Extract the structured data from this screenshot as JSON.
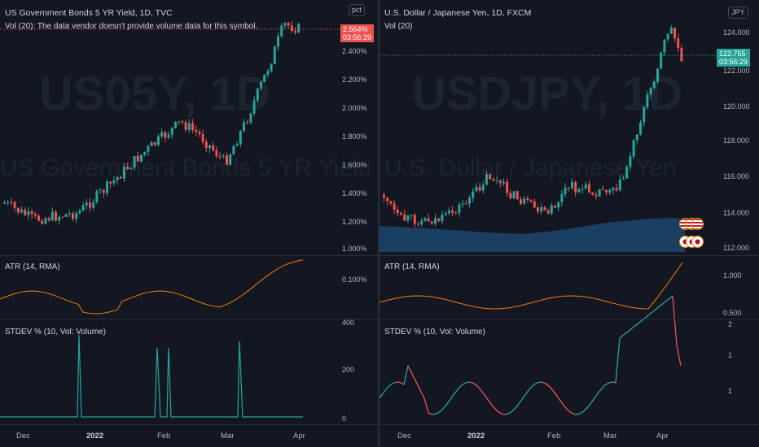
{
  "left": {
    "title": "US Government Bonds 5 YR Yield, 1D, TVC",
    "vol_note": "Vol (20): The data vendor doesn't provide volume data for this symbol.",
    "watermark_big": "US05Y, 1D",
    "watermark_small": "US Government Bonds 5 YR Yield",
    "unit": "pct",
    "price_ticks": [
      "2.400%",
      "2.200%",
      "2.000%",
      "1.800%",
      "1.600%",
      "1.400%",
      "1.200%",
      "1.000%"
    ],
    "last_price": "2.564%",
    "countdown": "03:56:29",
    "atr_label": "ATR (14, RMA)",
    "atr_tick": "0.100%",
    "stdev_label": "STDEV % (10, Vol: Volume)",
    "stdev_ticks": [
      "400",
      "200",
      "0"
    ],
    "time_labels": [
      "Dec",
      "2022",
      "Feb",
      "Mar",
      "Apr"
    ]
  },
  "right": {
    "title": "U.S. Dollar / Japanese Yen, 1D, FXCM",
    "vol_label": "Vol (20)",
    "watermark_big": "USDJPY, 1D",
    "watermark_small": "U.S. Dollar / Japanese Yen",
    "unit": "JPY",
    "price_ticks": [
      "124.000",
      "122.000",
      "120.000",
      "118.000",
      "116.000",
      "114.000",
      "112.000"
    ],
    "last_price": "122.755",
    "countdown": "03:56:29",
    "atr_label": "ATR (14, RMA)",
    "atr_ticks": [
      "1.000",
      "0.500"
    ],
    "stdev_label": "STDEV % (10, Vol: Volume)",
    "stdev_ticks": [
      "2",
      "1",
      "1"
    ],
    "time_labels": [
      "Dec",
      "2022",
      "Feb",
      "Mar",
      "Apr"
    ]
  },
  "colors": {
    "background": "#131722",
    "up": "#26a69a",
    "down": "#ef5350",
    "atr": "#f57c00",
    "volume_area": "#1e4d78",
    "last_price_left": "#ef5350",
    "last_price_right": "#26a69a"
  }
}
